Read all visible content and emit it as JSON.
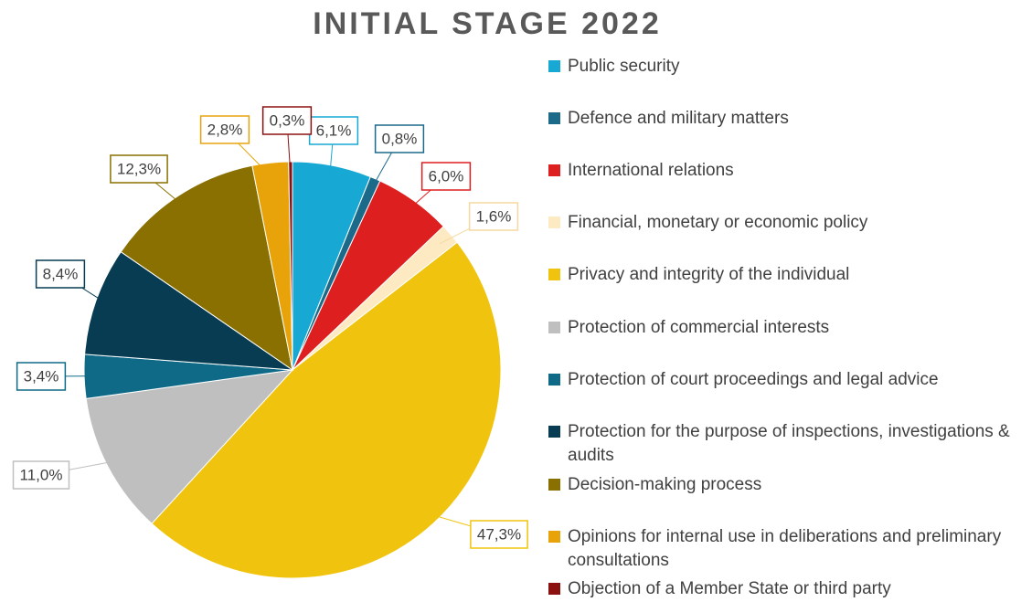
{
  "chart_data": {
    "type": "pie",
    "title": "INITIAL STAGE 2022",
    "categories": [
      "Public security",
      "Defence and military matters",
      "International relations",
      "Financial, monetary or economic policy",
      "Privacy and integrity of the individual",
      "Protection of commercial interests",
      "Protection of court proceedings and legal advice",
      "Protection for the purpose of inspections, investigations & audits",
      "Decision-making process",
      "Opinions for internal use in deliberations and preliminary consultations",
      "Objection of a Member State or third party"
    ],
    "values": [
      6.1,
      0.8,
      6.0,
      1.6,
      47.3,
      11.0,
      3.4,
      8.4,
      12.3,
      2.8,
      0.3
    ],
    "value_labels": [
      "6,1%",
      "0,8%",
      "6,0%",
      "1,6%",
      "47,3%",
      "11,0%",
      "3,4%",
      "8,4%",
      "12,3%",
      "2,8%",
      "0,3%"
    ],
    "colors": [
      "#17a8d4",
      "#1b6a8a",
      "#de1f1f",
      "#fde9c2",
      "#f0c40e",
      "#bfbfbf",
      "#0f6a87",
      "#073c52",
      "#8a7000",
      "#e8a30b",
      "#8b1010"
    ],
    "legend": "right"
  }
}
